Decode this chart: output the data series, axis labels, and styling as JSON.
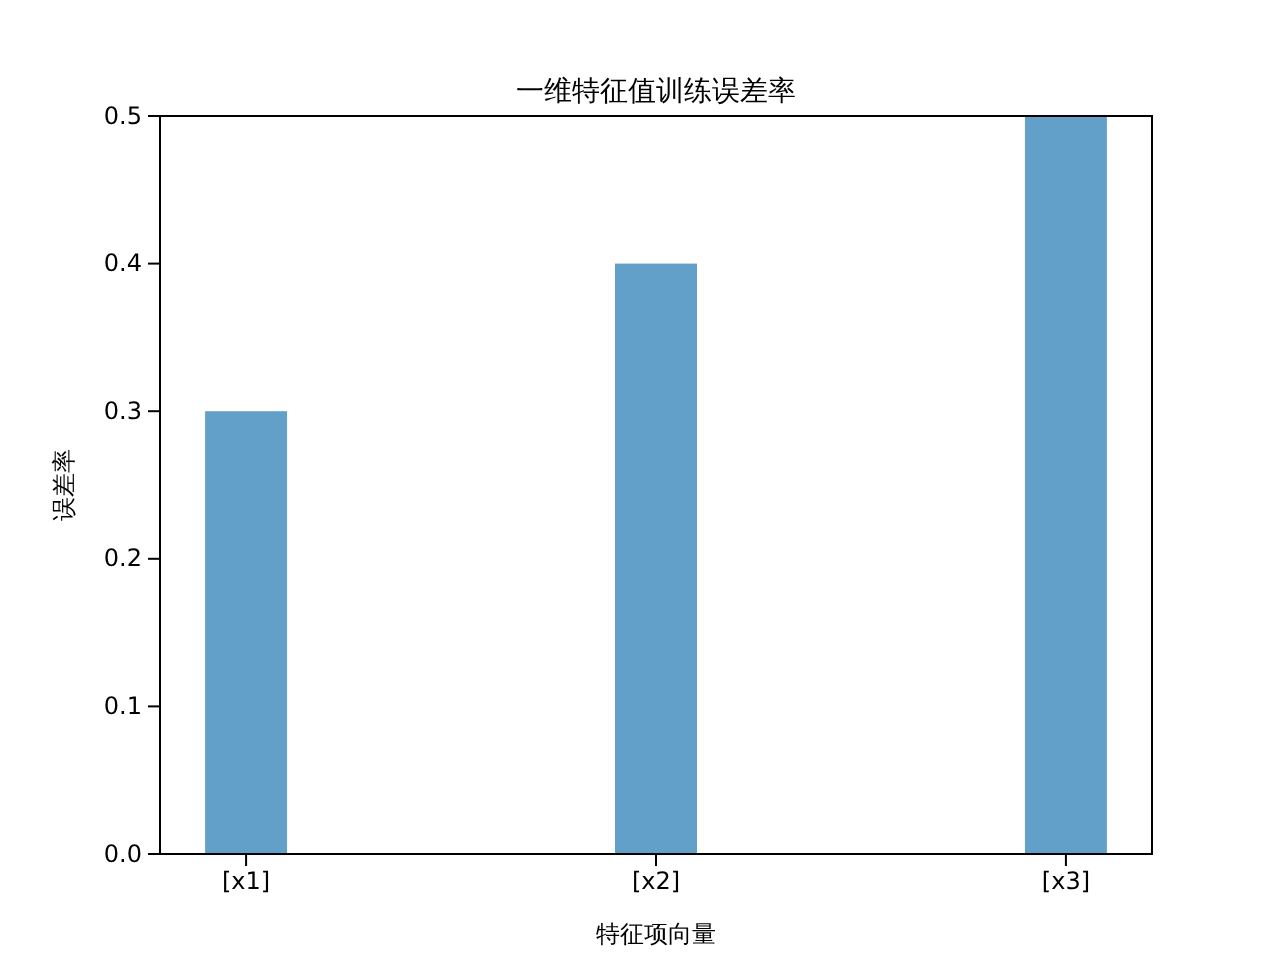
{
  "chart_data": {
    "type": "bar",
    "title": "一维特征值训练误差率",
    "xlabel": "特征项向量",
    "ylabel": "误差率",
    "categories": [
      "[x1]",
      "[x2]",
      "[x3]"
    ],
    "values": [
      0.3,
      0.4,
      0.5
    ],
    "color": "#62a0ca",
    "ylim": [
      0,
      0.5
    ],
    "yticks": [
      {
        "value": 0,
        "label": "0.0"
      },
      {
        "value": 0.1,
        "label": "0.1"
      },
      {
        "value": 0.2,
        "label": "0.2"
      },
      {
        "value": 0.3,
        "label": "0.3"
      },
      {
        "value": 0.4,
        "label": "0.4"
      },
      {
        "value": 0.5,
        "label": "0.5"
      }
    ],
    "grid": false
  }
}
